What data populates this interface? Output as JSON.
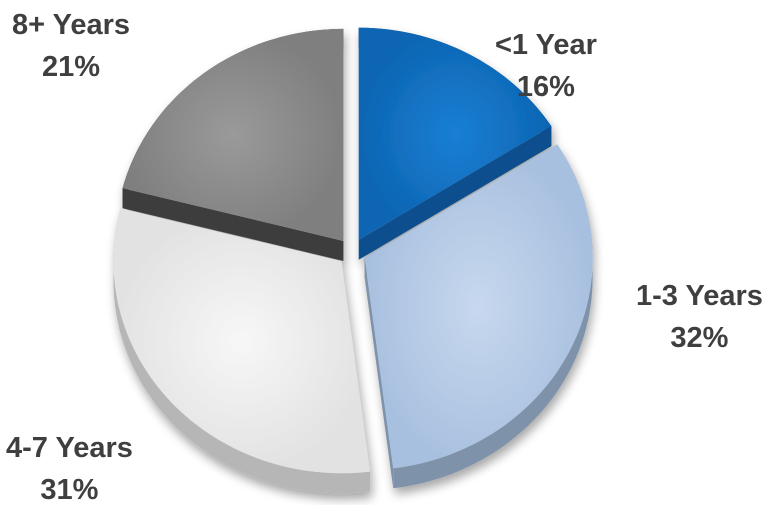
{
  "chart_data": {
    "type": "pie",
    "title": "",
    "slices": [
      {
        "label": "<1 Year",
        "value": 16,
        "display_value": "16%",
        "color": "#0f6fc0",
        "side_color": "#0a4f8e"
      },
      {
        "label": "1-3 Years",
        "value": 32,
        "display_value": "32%",
        "color": "#b4cbe7",
        "side_color": "#7e92aa"
      },
      {
        "label": "4-7 Years",
        "value": 31,
        "display_value": "31%",
        "color": "#ececec",
        "side_color": "#b6b6b6"
      },
      {
        "label": "8+ Years",
        "value": 21,
        "display_value": "21%",
        "color": "#8c8c8c",
        "side_color": "#3c3c3c"
      }
    ],
    "start": "top",
    "direction": "clockwise",
    "exploded": true,
    "style": "3d",
    "legend": "none"
  }
}
